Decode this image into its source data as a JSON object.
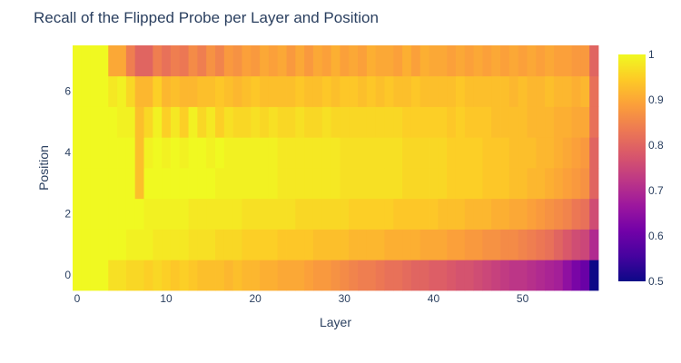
{
  "chart_data": {
    "type": "heatmap",
    "title": "Recall of the Flipped Probe per Layer and Position",
    "xlabel": "Layer",
    "ylabel": "Position",
    "x_range": [
      -0.5,
      58.5
    ],
    "y_range": [
      -0.5,
      7.5
    ],
    "x_ticks": [
      0,
      10,
      20,
      30,
      40,
      50
    ],
    "y_ticks": [
      0,
      2,
      4,
      6
    ],
    "colorbar": {
      "range": [
        0.5,
        1.0
      ],
      "ticks": [
        0.5,
        0.6,
        0.7,
        0.8,
        0.9,
        1
      ],
      "tick_labels": [
        "0.5",
        "0.6",
        "0.7",
        "0.8",
        "0.9",
        "1"
      ],
      "colorscale": [
        "#0d0887",
        "#46039f",
        "#7201a8",
        "#9c179e",
        "#bd3786",
        "#d8576b",
        "#ed7953",
        "#fb9f3a",
        "#fdca26",
        "#f0f921"
      ]
    },
    "rows": [
      {
        "position": 0,
        "values": [
          1.0,
          1.0,
          1.0,
          1.0,
          0.97,
          0.97,
          0.96,
          0.96,
          0.95,
          0.96,
          0.95,
          0.94,
          0.95,
          0.94,
          0.93,
          0.93,
          0.93,
          0.92,
          0.93,
          0.92,
          0.92,
          0.91,
          0.91,
          0.9,
          0.9,
          0.9,
          0.89,
          0.88,
          0.88,
          0.87,
          0.86,
          0.85,
          0.84,
          0.84,
          0.83,
          0.82,
          0.82,
          0.81,
          0.8,
          0.8,
          0.79,
          0.79,
          0.78,
          0.77,
          0.77,
          0.76,
          0.75,
          0.74,
          0.73,
          0.72,
          0.72,
          0.71,
          0.7,
          0.69,
          0.68,
          0.65,
          0.62,
          0.6,
          0.5
        ]
      },
      {
        "position": 1,
        "values": [
          1.0,
          1.0,
          1.0,
          1.0,
          1.0,
          1.0,
          0.99,
          0.99,
          0.99,
          0.98,
          0.98,
          0.98,
          0.98,
          0.97,
          0.97,
          0.97,
          0.96,
          0.96,
          0.96,
          0.95,
          0.95,
          0.95,
          0.95,
          0.94,
          0.94,
          0.94,
          0.94,
          0.93,
          0.93,
          0.93,
          0.93,
          0.92,
          0.92,
          0.92,
          0.92,
          0.91,
          0.91,
          0.91,
          0.91,
          0.9,
          0.9,
          0.9,
          0.89,
          0.89,
          0.88,
          0.88,
          0.87,
          0.87,
          0.86,
          0.86,
          0.85,
          0.84,
          0.83,
          0.82,
          0.8,
          0.78,
          0.76,
          0.75,
          0.7
        ]
      },
      {
        "position": 2,
        "values": [
          1.0,
          1.0,
          1.0,
          1.0,
          1.0,
          1.0,
          1.0,
          1.0,
          0.99,
          0.99,
          0.99,
          0.99,
          0.99,
          0.98,
          0.98,
          0.98,
          0.98,
          0.98,
          0.98,
          0.97,
          0.97,
          0.97,
          0.97,
          0.97,
          0.97,
          0.96,
          0.96,
          0.96,
          0.96,
          0.96,
          0.96,
          0.95,
          0.95,
          0.95,
          0.95,
          0.95,
          0.94,
          0.94,
          0.94,
          0.94,
          0.94,
          0.93,
          0.93,
          0.93,
          0.92,
          0.92,
          0.92,
          0.91,
          0.91,
          0.9,
          0.9,
          0.89,
          0.88,
          0.87,
          0.86,
          0.85,
          0.83,
          0.82,
          0.76
        ]
      },
      {
        "position": 3,
        "values": [
          1.0,
          1.0,
          1.0,
          1.0,
          1.0,
          1.0,
          1.0,
          0.93,
          1.0,
          1.0,
          1.0,
          1.0,
          1.0,
          1.0,
          1.0,
          1.0,
          0.99,
          0.99,
          0.99,
          0.99,
          0.99,
          0.99,
          0.99,
          0.98,
          0.98,
          0.98,
          0.98,
          0.98,
          0.98,
          0.98,
          0.97,
          0.97,
          0.97,
          0.97,
          0.97,
          0.97,
          0.97,
          0.96,
          0.96,
          0.96,
          0.96,
          0.96,
          0.95,
          0.95,
          0.95,
          0.95,
          0.94,
          0.94,
          0.94,
          0.93,
          0.93,
          0.92,
          0.92,
          0.91,
          0.9,
          0.89,
          0.88,
          0.87,
          0.8
        ]
      },
      {
        "position": 4,
        "values": [
          1.0,
          1.0,
          1.0,
          1.0,
          1.0,
          1.0,
          1.0,
          0.93,
          0.99,
          1.0,
          0.99,
          1.0,
          0.99,
          1.0,
          1.0,
          0.99,
          1.0,
          0.99,
          0.99,
          0.99,
          0.99,
          0.99,
          0.99,
          0.98,
          0.98,
          0.98,
          0.98,
          0.98,
          0.98,
          0.98,
          0.97,
          0.97,
          0.97,
          0.97,
          0.97,
          0.97,
          0.97,
          0.96,
          0.96,
          0.96,
          0.96,
          0.96,
          0.95,
          0.95,
          0.95,
          0.95,
          0.94,
          0.94,
          0.94,
          0.93,
          0.93,
          0.93,
          0.92,
          0.92,
          0.91,
          0.9,
          0.89,
          0.88,
          0.8
        ]
      },
      {
        "position": 5,
        "values": [
          1.0,
          1.0,
          1.0,
          1.0,
          1.0,
          0.99,
          0.99,
          0.93,
          0.96,
          0.99,
          0.95,
          0.98,
          0.95,
          0.99,
          0.96,
          0.98,
          0.95,
          0.97,
          0.96,
          0.96,
          0.97,
          0.96,
          0.97,
          0.96,
          0.96,
          0.97,
          0.96,
          0.96,
          0.97,
          0.96,
          0.96,
          0.96,
          0.96,
          0.96,
          0.96,
          0.96,
          0.96,
          0.95,
          0.95,
          0.95,
          0.95,
          0.95,
          0.94,
          0.95,
          0.94,
          0.94,
          0.94,
          0.93,
          0.93,
          0.93,
          0.93,
          0.92,
          0.92,
          0.92,
          0.91,
          0.91,
          0.9,
          0.9,
          0.82
        ]
      },
      {
        "position": 6,
        "values": [
          1.0,
          1.0,
          1.0,
          1.0,
          0.98,
          0.99,
          0.96,
          0.92,
          0.92,
          0.95,
          0.92,
          0.93,
          0.92,
          0.92,
          0.93,
          0.93,
          0.94,
          0.93,
          0.92,
          0.93,
          0.94,
          0.93,
          0.93,
          0.93,
          0.93,
          0.94,
          0.93,
          0.93,
          0.94,
          0.93,
          0.94,
          0.94,
          0.93,
          0.94,
          0.93,
          0.94,
          0.93,
          0.93,
          0.94,
          0.93,
          0.93,
          0.93,
          0.93,
          0.94,
          0.93,
          0.93,
          0.93,
          0.93,
          0.93,
          0.92,
          0.93,
          0.92,
          0.92,
          0.93,
          0.92,
          0.92,
          0.91,
          0.92,
          0.82
        ]
      },
      {
        "position": 7,
        "values": [
          1.0,
          1.0,
          1.0,
          1.0,
          0.9,
          0.9,
          0.84,
          0.8,
          0.8,
          0.84,
          0.82,
          0.84,
          0.83,
          0.86,
          0.84,
          0.87,
          0.85,
          0.88,
          0.87,
          0.89,
          0.88,
          0.9,
          0.89,
          0.9,
          0.88,
          0.9,
          0.88,
          0.9,
          0.89,
          0.91,
          0.89,
          0.9,
          0.89,
          0.91,
          0.9,
          0.9,
          0.89,
          0.91,
          0.89,
          0.91,
          0.9,
          0.9,
          0.89,
          0.9,
          0.89,
          0.9,
          0.89,
          0.9,
          0.89,
          0.9,
          0.89,
          0.9,
          0.89,
          0.9,
          0.89,
          0.89,
          0.88,
          0.88,
          0.8
        ]
      }
    ]
  }
}
